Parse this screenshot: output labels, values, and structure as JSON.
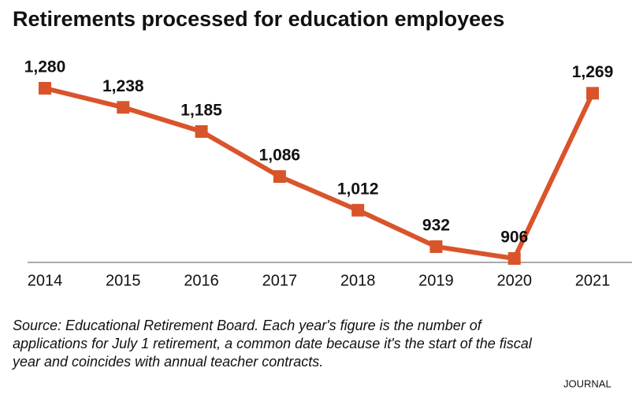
{
  "chart_data": {
    "type": "line",
    "title": "Retirements processed for education employees",
    "categories": [
      "2014",
      "2015",
      "2016",
      "2017",
      "2018",
      "2019",
      "2020",
      "2021"
    ],
    "values": [
      1280,
      1238,
      1185,
      1086,
      1012,
      932,
      906,
      1269
    ],
    "value_labels": [
      "1,280",
      "1,238",
      "1,185",
      "1,086",
      "1,012",
      "932",
      "906",
      "1,269"
    ],
    "color": "#d9542b",
    "source": [
      "Source: Educational Retirement Board. Each year's figure is the number of",
      "applications for July 1 retirement, a common date because it's the start of the fiscal",
      "year and coincides with annual teacher contracts."
    ],
    "credit": "JOURNAL"
  }
}
